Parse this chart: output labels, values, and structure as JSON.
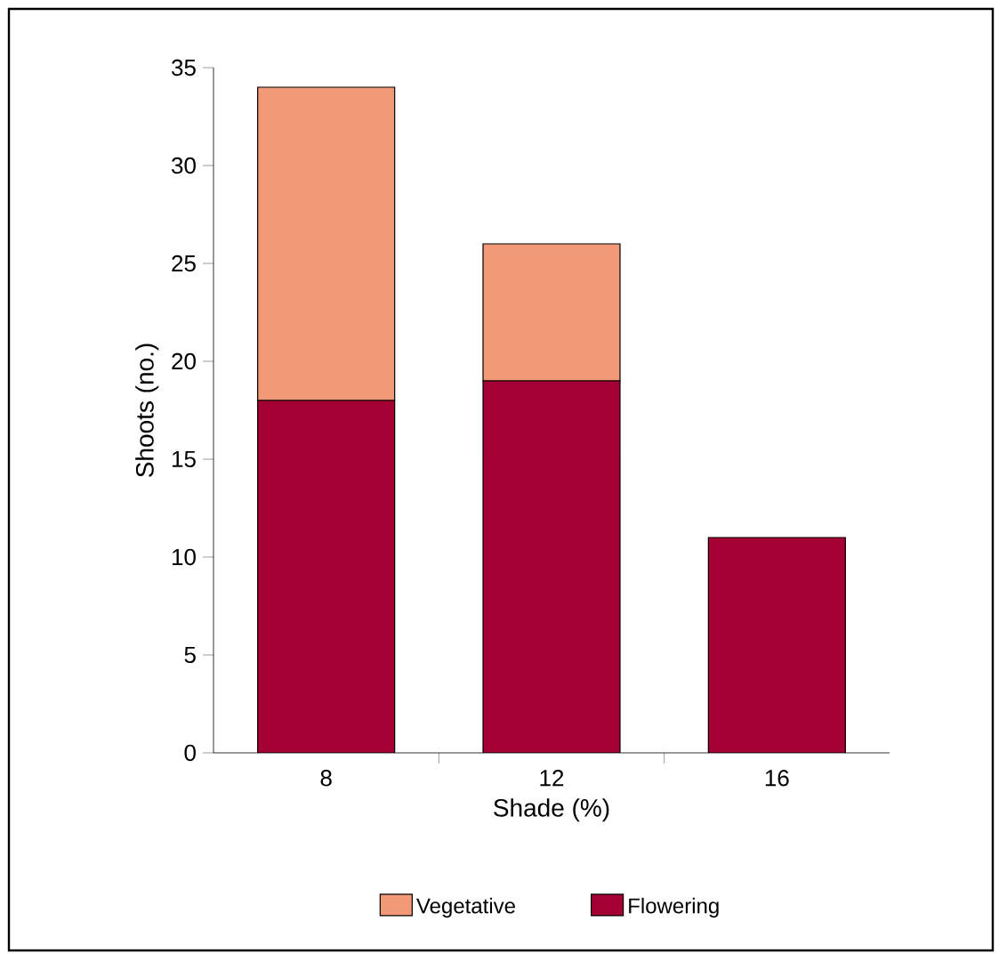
{
  "chart_data": {
    "type": "bar",
    "stacked": true,
    "xlabel": "Shade (%)",
    "ylabel": "Shoots (no.)",
    "categories": [
      "8",
      "12",
      "16"
    ],
    "series": [
      {
        "name": "Flowering",
        "color": "#a50034",
        "values": [
          18,
          19,
          11
        ]
      },
      {
        "name": "Vegetative",
        "color": "#f29a78",
        "values": [
          16,
          7,
          null
        ]
      }
    ],
    "ylim": [
      0,
      35
    ],
    "yticks": [
      0,
      5,
      10,
      15,
      20,
      25,
      30,
      35
    ],
    "legend": "bottom"
  }
}
